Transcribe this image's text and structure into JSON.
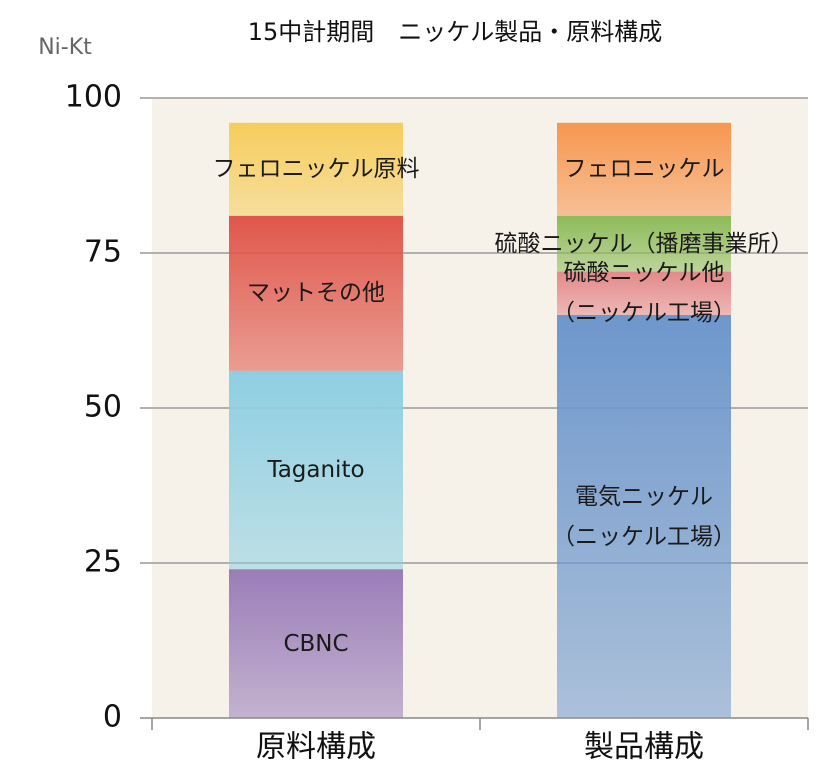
{
  "chart_data": {
    "type": "stacked_bar",
    "title": "15中計期間　ニッケル製品・原料構成",
    "y_label": "Ni-Kt",
    "categories": [
      "原料構成",
      "製品構成"
    ],
    "series": [
      {
        "name": "CBNC",
        "color": "#9a7db8",
        "values": [
          24,
          null
        ]
      },
      {
        "name": "Taganito",
        "color": "#8ecfe2",
        "values": [
          32,
          null
        ]
      },
      {
        "name": "マットその他",
        "color": "#e0564a",
        "values": [
          25,
          null
        ]
      },
      {
        "name": "フェロニッケル原料",
        "color": "#f6cd5c",
        "values": [
          15,
          null
        ]
      },
      {
        "name": "電気ニッケル\n（ニッケル工場）",
        "color": "#6e97cc",
        "values": [
          null,
          65
        ]
      },
      {
        "name": "硫酸ニッケル他\n（ニッケル工場）",
        "color": "#e4898a",
        "values": [
          null,
          7
        ]
      },
      {
        "name": "硫酸ニッケル（播磨事業所）",
        "color": "#8dbb58",
        "values": [
          null,
          9
        ]
      },
      {
        "name": "フェロニッケル",
        "color": "#f7964f",
        "values": [
          null,
          15
        ]
      }
    ],
    "ylim": [
      0,
      100
    ],
    "yticks": [
      0,
      25,
      50,
      75,
      100
    ],
    "grid": true
  }
}
